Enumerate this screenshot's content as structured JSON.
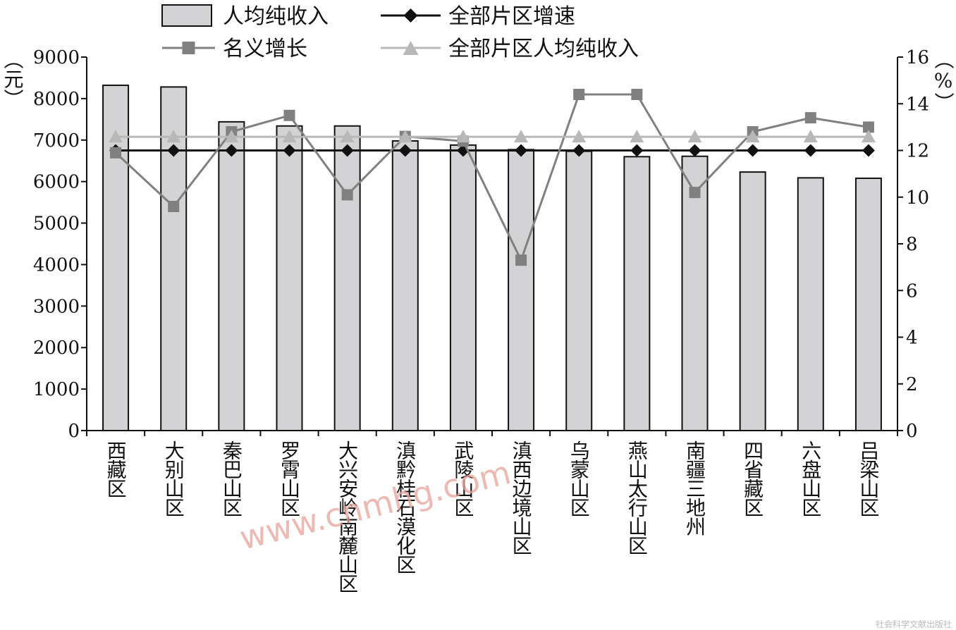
{
  "chart_data": {
    "type": "bar",
    "categories": [
      "西藏区",
      "大别山区",
      "秦巴山区",
      "罗霄山区",
      "大兴安岭南麓山区",
      "滇黔桂石漠化区",
      "武陵山区",
      "滇西边境山区",
      "乌蒙山区",
      "燕山太行山区",
      "南疆三地州",
      "四省藏区",
      "六盘山区",
      "吕梁山区"
    ],
    "series": [
      {
        "name": "人均纯收入",
        "kind": "bar",
        "axis": "left",
        "color": "#d3d3d5",
        "values": [
          8320,
          8280,
          7440,
          7340,
          7340,
          6980,
          6880,
          6770,
          6730,
          6600,
          6610,
          6230,
          6090,
          6080
        ]
      },
      {
        "name": "全部片区增速",
        "kind": "line",
        "axis": "right",
        "marker": "diamond",
        "color": "#111111",
        "values": [
          12.0,
          12.0,
          12.0,
          12.0,
          12.0,
          12.0,
          12.0,
          12.0,
          12.0,
          12.0,
          12.0,
          12.0,
          12.0,
          12.0
        ]
      },
      {
        "name": "名义增长",
        "kind": "line",
        "axis": "right",
        "marker": "square",
        "color": "#808080",
        "values": [
          11.9,
          9.6,
          12.8,
          13.5,
          10.1,
          12.6,
          12.4,
          7.3,
          14.4,
          14.4,
          10.2,
          12.8,
          13.4,
          13.0
        ]
      },
      {
        "name": "全部片区人均纯收入",
        "kind": "line",
        "axis": "left",
        "marker": "triangle",
        "color": "#b8b8b8",
        "values": [
          7080,
          7080,
          7080,
          7080,
          7080,
          7080,
          7080,
          7080,
          7080,
          7080,
          7080,
          7080,
          7080,
          7080
        ]
      }
    ],
    "y_left": {
      "label": "（元）",
      "ylim": [
        0,
        9000
      ],
      "ticks": [
        "0",
        "1000",
        "2000",
        "3000",
        "4000",
        "5000",
        "6000",
        "7000",
        "8000",
        "9000"
      ]
    },
    "y_right": {
      "label": "（%）",
      "ylim": [
        0,
        16
      ],
      "ticks": [
        "0",
        "2",
        "4",
        "6",
        "8",
        "10",
        "12",
        "14",
        "16"
      ]
    },
    "legend_position": "top",
    "grid": false
  },
  "watermark": "www.cnmhg.com",
  "footer_mark": "社会科学文献出版社"
}
